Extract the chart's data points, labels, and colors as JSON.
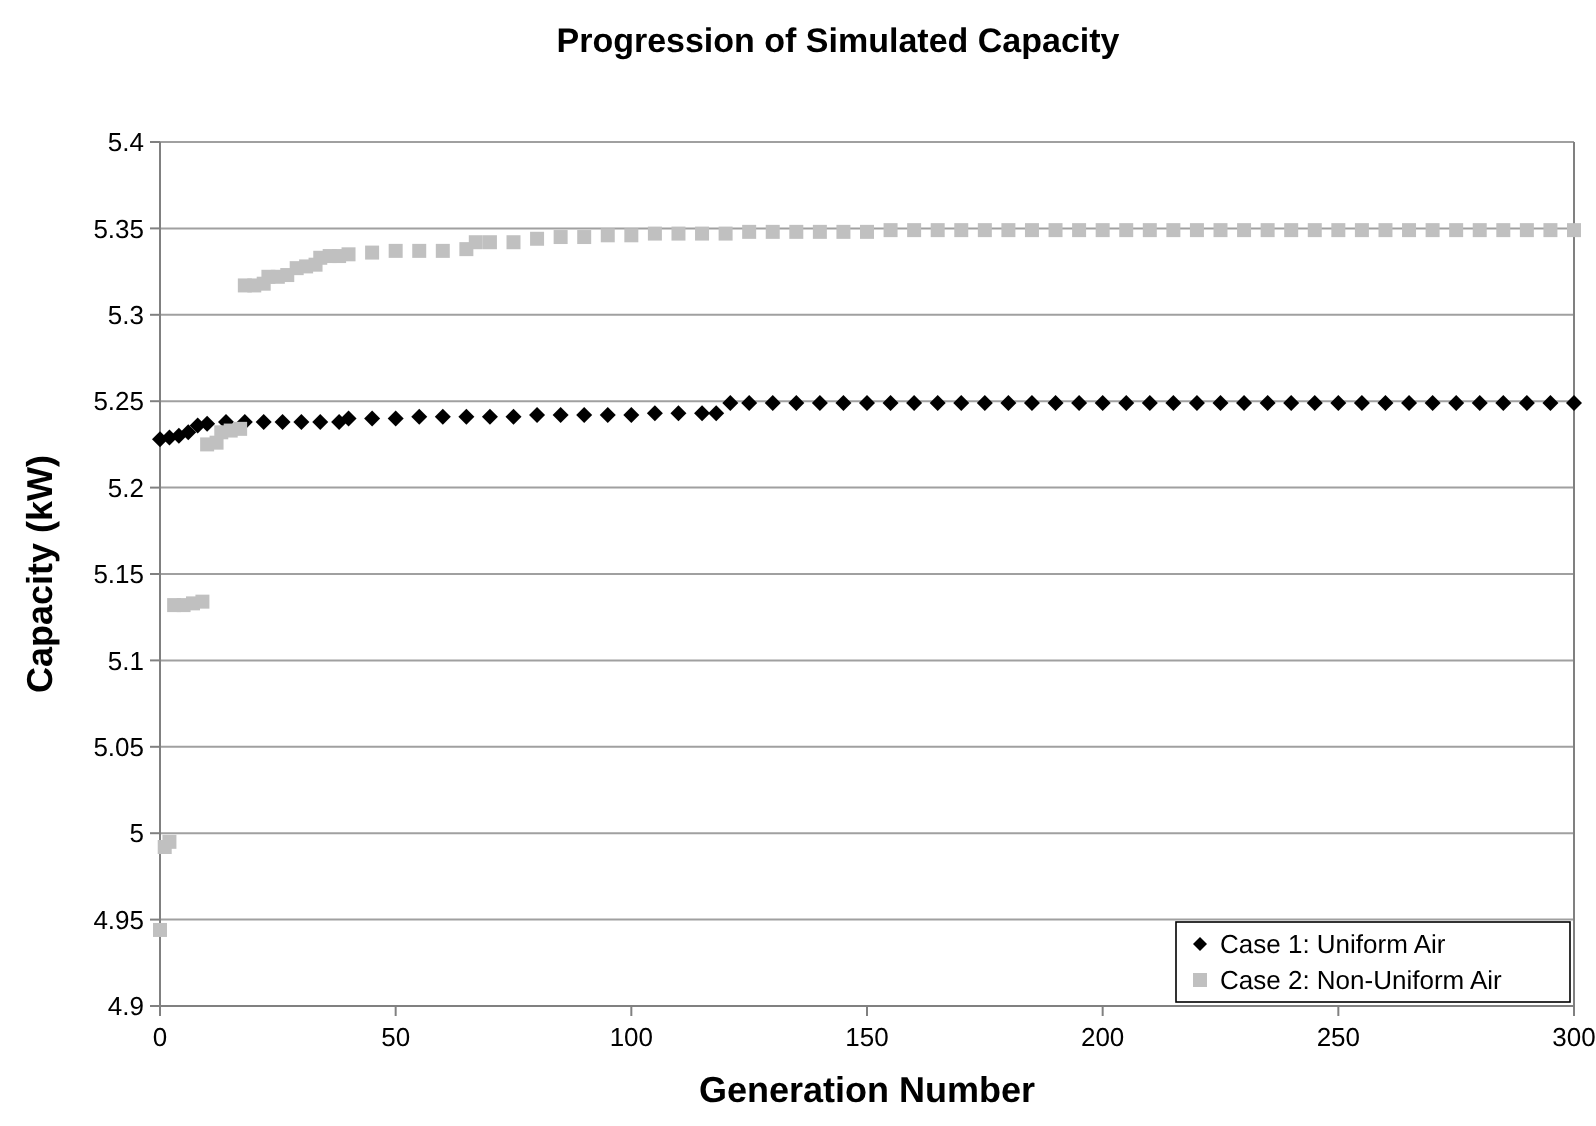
{
  "chart_data": {
    "type": "scatter",
    "title": "Progression of Simulated Capacity",
    "xlabel": "Generation Number",
    "ylabel": "Capacity (kW)",
    "xlim": [
      0,
      300
    ],
    "xticks": [
      0,
      50,
      100,
      150,
      200,
      250,
      300
    ],
    "ylim": [
      4.9,
      5.4
    ],
    "yticks": [
      4.9,
      4.95,
      5,
      5.05,
      5.1,
      5.15,
      5.2,
      5.25,
      5.3,
      5.35,
      5.4
    ],
    "grid": "y",
    "legend": "bottom right",
    "series": [
      {
        "name": "Case 1: Uniform Air",
        "color": "#000000",
        "marker": "diamond",
        "x": [
          0,
          2,
          4,
          6,
          8,
          10,
          14,
          18,
          22,
          26,
          30,
          34,
          38,
          40,
          45,
          50,
          55,
          60,
          65,
          70,
          75,
          80,
          85,
          90,
          95,
          100,
          105,
          110,
          115,
          118,
          121,
          125,
          130,
          135,
          140,
          145,
          150,
          155,
          160,
          165,
          170,
          175,
          180,
          185,
          190,
          195,
          200,
          205,
          210,
          215,
          220,
          225,
          230,
          235,
          240,
          245,
          250,
          255,
          260,
          265,
          270,
          275,
          280,
          285,
          290,
          295,
          300
        ],
        "values": [
          5.228,
          5.229,
          5.23,
          5.232,
          5.236,
          5.237,
          5.238,
          5.238,
          5.238,
          5.238,
          5.238,
          5.238,
          5.238,
          5.24,
          5.24,
          5.24,
          5.241,
          5.241,
          5.241,
          5.241,
          5.241,
          5.242,
          5.242,
          5.242,
          5.242,
          5.242,
          5.243,
          5.243,
          5.243,
          5.243,
          5.249,
          5.249,
          5.249,
          5.249,
          5.249,
          5.249,
          5.249,
          5.249,
          5.249,
          5.249,
          5.249,
          5.249,
          5.249,
          5.249,
          5.249,
          5.249,
          5.249,
          5.249,
          5.249,
          5.249,
          5.249,
          5.249,
          5.249,
          5.249,
          5.249,
          5.249,
          5.249,
          5.249,
          5.249,
          5.249,
          5.249,
          5.249,
          5.249,
          5.249,
          5.249,
          5.249,
          5.249
        ]
      },
      {
        "name": "Case 2: Non-Uniform Air",
        "color": "#c0c0c0",
        "marker": "square",
        "x": [
          0,
          1,
          2,
          3,
          5,
          7,
          9,
          10,
          12,
          13,
          15,
          17,
          18,
          20,
          22,
          23,
          25,
          27,
          29,
          31,
          33,
          34,
          36,
          38,
          40,
          45,
          50,
          55,
          60,
          65,
          67,
          70,
          75,
          80,
          85,
          90,
          95,
          100,
          105,
          110,
          115,
          120,
          125,
          130,
          135,
          140,
          145,
          150,
          155,
          160,
          165,
          170,
          175,
          180,
          185,
          190,
          195,
          200,
          205,
          210,
          215,
          220,
          225,
          230,
          235,
          240,
          245,
          250,
          255,
          260,
          265,
          270,
          275,
          280,
          285,
          290,
          295,
          300
        ],
        "values": [
          4.944,
          4.992,
          4.995,
          5.132,
          5.132,
          5.133,
          5.134,
          5.225,
          5.226,
          5.232,
          5.233,
          5.234,
          5.317,
          5.317,
          5.318,
          5.322,
          5.322,
          5.323,
          5.327,
          5.328,
          5.329,
          5.333,
          5.334,
          5.334,
          5.335,
          5.336,
          5.337,
          5.337,
          5.337,
          5.338,
          5.342,
          5.342,
          5.342,
          5.344,
          5.345,
          5.345,
          5.346,
          5.346,
          5.347,
          5.347,
          5.347,
          5.347,
          5.348,
          5.348,
          5.348,
          5.348,
          5.348,
          5.348,
          5.349,
          5.349,
          5.349,
          5.349,
          5.349,
          5.349,
          5.349,
          5.349,
          5.349,
          5.349,
          5.349,
          5.349,
          5.349,
          5.349,
          5.349,
          5.349,
          5.349,
          5.349,
          5.349,
          5.349,
          5.349,
          5.349,
          5.349,
          5.349,
          5.349,
          5.349,
          5.349,
          5.349,
          5.349,
          5.349
        ]
      }
    ]
  }
}
